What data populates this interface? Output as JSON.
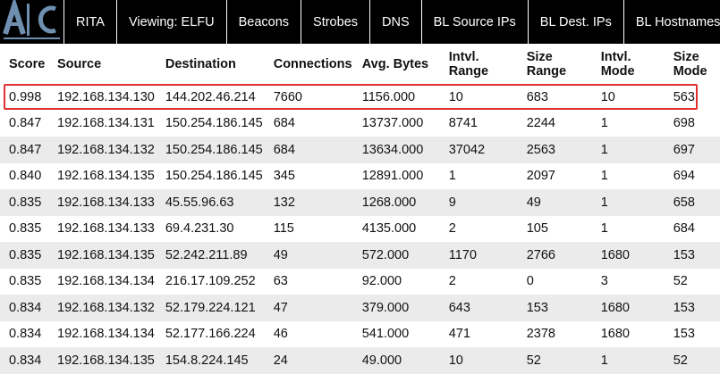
{
  "nav": {
    "items": [
      "RITA",
      "Viewing: ELFU",
      "Beacons",
      "Strobes",
      "DNS",
      "BL Source IPs",
      "BL Dest. IPs",
      "BL Hostnames"
    ]
  },
  "table": {
    "headers": [
      "Score",
      "Source",
      "Destination",
      "Connections",
      "Avg. Bytes",
      "Intvl. Range",
      "Size Range",
      "Intvl. Mode",
      "Size Mode"
    ],
    "rows": [
      [
        "0.998",
        "192.168.134.130",
        "144.202.46.214",
        "7660",
        "1156.000",
        "10",
        "683",
        "10",
        "563"
      ],
      [
        "0.847",
        "192.168.134.131",
        "150.254.186.145",
        "684",
        "13737.000",
        "8741",
        "2244",
        "1",
        "698"
      ],
      [
        "0.847",
        "192.168.134.132",
        "150.254.186.145",
        "684",
        "13634.000",
        "37042",
        "2563",
        "1",
        "697"
      ],
      [
        "0.840",
        "192.168.134.135",
        "150.254.186.145",
        "345",
        "12891.000",
        "1",
        "2097",
        "1",
        "694"
      ],
      [
        "0.835",
        "192.168.134.133",
        "45.55.96.63",
        "132",
        "1268.000",
        "9",
        "49",
        "1",
        "658"
      ],
      [
        "0.835",
        "192.168.134.133",
        "69.4.231.30",
        "115",
        "4135.000",
        "2",
        "105",
        "1",
        "684"
      ],
      [
        "0.835",
        "192.168.134.135",
        "52.242.211.89",
        "49",
        "572.000",
        "1170",
        "2766",
        "1680",
        "153"
      ],
      [
        "0.835",
        "192.168.134.134",
        "216.17.109.252",
        "63",
        "92.000",
        "2",
        "0",
        "3",
        "52"
      ],
      [
        "0.834",
        "192.168.134.132",
        "52.179.224.121",
        "47",
        "379.000",
        "643",
        "153",
        "1680",
        "153"
      ],
      [
        "0.834",
        "192.168.134.134",
        "52.177.166.224",
        "46",
        "541.000",
        "471",
        "2378",
        "1680",
        "153"
      ],
      [
        "0.834",
        "192.168.134.135",
        "154.8.224.145",
        "24",
        "49.000",
        "10",
        "52",
        "1",
        "52"
      ]
    ]
  },
  "colors": {
    "navbar": "#000000",
    "logo": "#6e8fb0",
    "row_alt": "#ebebeb",
    "highlight": "#e03030"
  }
}
